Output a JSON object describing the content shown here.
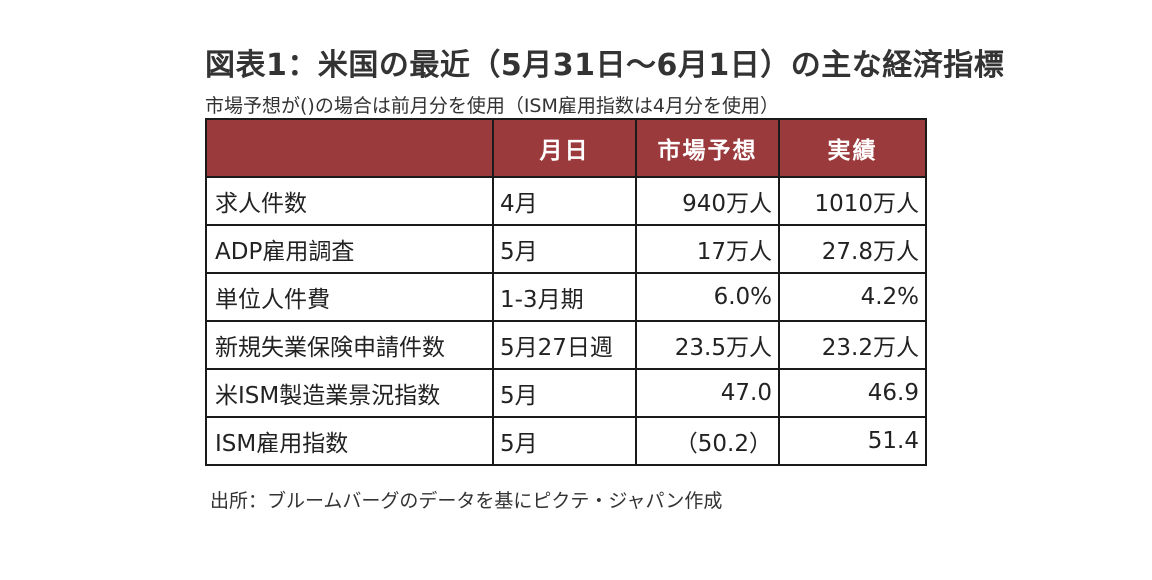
{
  "title": "図表1：米国の最近（5月31日～6月1日）の主な経済指標",
  "subtitle": "市場予想が()の場合は前月分を使用（ISM雇用指数は4月分を使用）",
  "table": {
    "headers": [
      "",
      "月日",
      "市場予想",
      "実績"
    ],
    "rows": [
      [
        "求人件数",
        "4月",
        "940万人",
        "1010万人"
      ],
      [
        "ADP雇用調査",
        "5月",
        "17万人",
        "27.8万人"
      ],
      [
        "単位人件費",
        "1-3月期",
        "6.0%",
        "4.2%"
      ],
      [
        "新規失業保険申請件数",
        "5月27日週",
        "23.5万人",
        "23.2万人"
      ],
      [
        "米ISM製造業景況指数",
        "5月",
        "47.0",
        "46.9"
      ],
      [
        "ISM雇用指数",
        "5月",
        "（50.2）",
        "51.4"
      ]
    ]
  },
  "source": "出所：ブルームバーグのデータを基にピクテ・ジャパン作成",
  "colors": {
    "header_bg": "#9b3a3d",
    "header_text": "#ffffff",
    "border": "#1a1a1a"
  }
}
